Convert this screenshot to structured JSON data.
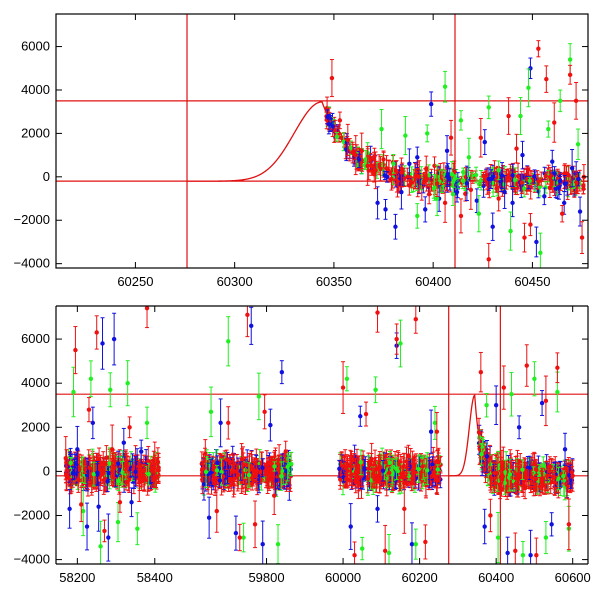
{
  "figure": {
    "colors": {
      "blue": "#1010e0",
      "green": "#20f020",
      "red": "#f01010",
      "reference": "#e01010",
      "axis": "#000000"
    }
  },
  "chart_data": [
    {
      "type": "scatter",
      "title": "",
      "xlabel": "",
      "ylabel": "",
      "xlim": [
        60210,
        60478
      ],
      "ylim": [
        -4200,
        7500
      ],
      "x_ticks": [
        60250,
        60300,
        60350,
        60400,
        60450
      ],
      "x_tick_labels": [
        "60250",
        "60300",
        "60350",
        "60400",
        "60450"
      ],
      "y_ticks": [
        -4000,
        -2000,
        0,
        2000,
        4000,
        6000
      ],
      "y_tick_labels": [
        "−4000",
        "−2000",
        "0",
        "2000",
        "4000",
        "6000"
      ],
      "grid": false,
      "legend": "none",
      "reference_lines": {
        "vertical_x": [
          60276,
          60411
        ],
        "horizontal_y": [
          3500,
          -200
        ]
      },
      "model_curve": {
        "start_x": 60276,
        "peak_x": 60344,
        "peak_y": 3450,
        "baseline_y": -200,
        "rise_width": 14,
        "decay_time": 15,
        "end_x": 60478
      },
      "series": [
        {
          "color": "blue",
          "points": [
            [
              60372,
              -1200
            ],
            [
              60376,
              -1500
            ],
            [
              60381,
              -2300
            ],
            [
              60384,
              -700
            ],
            [
              60388,
              600
            ],
            [
              60392,
              900
            ],
            [
              60396,
              -1500
            ],
            [
              60399,
              3350
            ],
            [
              60403,
              -1000
            ],
            [
              60407,
              1200
            ],
            [
              60412,
              -700
            ],
            [
              60417,
              -300
            ],
            [
              60422,
              -1100
            ],
            [
              60426,
              1600
            ],
            [
              60430,
              -2300
            ],
            [
              60436,
              -700
            ],
            [
              60440,
              -1200
            ],
            [
              60445,
              1000
            ],
            [
              60449,
              5000
            ],
            [
              60452,
              -3000
            ],
            [
              60456,
              -900
            ],
            [
              60460,
              700
            ],
            [
              60466,
              -1200
            ],
            [
              60470,
              400
            ],
            [
              60474,
              -1600
            ]
          ]
        },
        {
          "color": "green",
          "points": [
            [
              60367,
              1100
            ],
            [
              60374,
              2200
            ],
            [
              60380,
              600
            ],
            [
              60386,
              1900
            ],
            [
              60392,
              -1800
            ],
            [
              60397,
              2000
            ],
            [
              60402,
              -1000
            ],
            [
              60406,
              4150
            ],
            [
              60410,
              -800
            ],
            [
              60414,
              2600
            ],
            [
              60418,
              900
            ],
            [
              60423,
              -1700
            ],
            [
              60428,
              3200
            ],
            [
              60433,
              300
            ],
            [
              60439,
              -2500
            ],
            [
              60444,
              2800
            ],
            [
              60448,
              4100
            ],
            [
              60454,
              -3500
            ],
            [
              60458,
              2200
            ],
            [
              60464,
              3500
            ],
            [
              60469,
              5400
            ],
            [
              60473,
              1500
            ]
          ]
        },
        {
          "color": "red",
          "points": [
            [
              60349,
              4550
            ],
            [
              60353,
              2600
            ],
            [
              60357,
              1700
            ],
            [
              60361,
              1000
            ],
            [
              60364,
              1200
            ],
            [
              60367,
              500
            ],
            [
              60371,
              300
            ],
            [
              60375,
              800
            ],
            [
              60379,
              -100
            ],
            [
              60384,
              200
            ],
            [
              60388,
              -400
            ],
            [
              60393,
              0
            ],
            [
              60398,
              -800
            ],
            [
              60402,
              -300
            ],
            [
              60406,
              -1200
            ],
            [
              60409,
              1800
            ],
            [
              60414,
              -1800
            ],
            [
              60419,
              -600
            ],
            [
              60424,
              1800
            ],
            [
              60428,
              -3800
            ],
            [
              60433,
              -1000
            ],
            [
              60438,
              2800
            ],
            [
              60442,
              1300
            ],
            [
              60446,
              -2800
            ],
            [
              60449,
              -2200
            ],
            [
              60453,
              5900
            ],
            [
              60457,
              4500
            ],
            [
              60461,
              2500
            ],
            [
              60465,
              -1700
            ],
            [
              60469,
              4700
            ],
            [
              60472,
              3500
            ],
            [
              60475,
              -2800
            ]
          ]
        }
      ]
    },
    {
      "type": "scatter",
      "title": "",
      "xlabel": "",
      "ylabel": "",
      "ylim": [
        -4200,
        7500
      ],
      "x_ticks": [
        58200,
        58400,
        59800,
        60000,
        60200,
        60400,
        60600
      ],
      "x_tick_labels": [
        "58200",
        "58400",
        "59800",
        "60000",
        "60200",
        "60400",
        "60600"
      ],
      "y_ticks": [
        -4000,
        -2000,
        0,
        2000,
        4000,
        6000
      ],
      "y_tick_labels": [
        "−4000",
        "−2000",
        "0",
        "2000",
        "4000",
        "6000"
      ],
      "grid": false,
      "legend": "none",
      "axis_break": true,
      "segments": [
        {
          "xlim": [
            58150,
            58460
          ]
        },
        {
          "xlim": [
            59600,
            60640
          ]
        }
      ],
      "reference_lines": {
        "vertical_x": [
          60276,
          60411
        ],
        "horizontal_y": [
          3500,
          -200
        ]
      },
      "model_curve": {
        "start_x": 60276,
        "peak_x": 60344,
        "peak_y": 3450,
        "baseline_y": -200,
        "rise_width": 14,
        "decay_time": 15,
        "end_x": 60360
      },
      "data_windows": [
        {
          "x_from": 58170,
          "x_to": 58410
        },
        {
          "x_from": 59630,
          "x_to": 59865
        },
        {
          "x_from": 59990,
          "x_to": 60255
        },
        {
          "x_from": 60355,
          "x_to": 60600
        }
      ],
      "series": [
        {
          "color": "blue",
          "points": [
            [
              58180,
              -1700
            ],
            [
              58200,
              1000
            ],
            [
              58225,
              -2500
            ],
            [
              58240,
              2200
            ],
            [
              58255,
              -1600
            ],
            [
              58265,
              5800
            ],
            [
              58280,
              -3000
            ],
            [
              58295,
              6000
            ],
            [
              58320,
              1300
            ],
            [
              58340,
              -1400
            ],
            [
              58365,
              900
            ],
            [
              59650,
              -2100
            ],
            [
              59680,
              2200
            ],
            [
              59720,
              -2800
            ],
            [
              59760,
              6600
            ],
            [
              59790,
              -3300
            ],
            [
              59810,
              2100
            ],
            [
              59840,
              4500
            ],
            [
              60020,
              -2500
            ],
            [
              60045,
              2500
            ],
            [
              60090,
              -1700
            ],
            [
              60140,
              5700
            ],
            [
              60180,
              -3300
            ],
            [
              60230,
              1800
            ],
            [
              60370,
              -2500
            ],
            [
              60400,
              3000
            ],
            [
              60430,
              -3700
            ],
            [
              60460,
              2000
            ],
            [
              60490,
              -3800
            ],
            [
              60520,
              3100
            ],
            [
              60545,
              -2400
            ],
            [
              60580,
              1000
            ]
          ]
        },
        {
          "color": "green",
          "points": [
            [
              58190,
              3600
            ],
            [
              58215,
              -1800
            ],
            [
              58235,
              4200
            ],
            [
              58260,
              -3400
            ],
            [
              58285,
              3700
            ],
            [
              58305,
              -2300
            ],
            [
              58330,
              4000
            ],
            [
              58355,
              -2600
            ],
            [
              58380,
              2200
            ],
            [
              59655,
              2700
            ],
            [
              59700,
              5900
            ],
            [
              59740,
              -3000
            ],
            [
              59780,
              3400
            ],
            [
              59830,
              -3300
            ],
            [
              60010,
              4200
            ],
            [
              60050,
              -3500
            ],
            [
              60085,
              3700
            ],
            [
              60120,
              -3700
            ],
            [
              60150,
              5800
            ],
            [
              60190,
              -3300
            ],
            [
              60240,
              2200
            ],
            [
              60375,
              3000
            ],
            [
              60405,
              -3000
            ],
            [
              60440,
              3500
            ],
            [
              60470,
              -3800
            ],
            [
              60500,
              4200
            ],
            [
              60530,
              -3000
            ],
            [
              60560,
              3600
            ],
            [
              60590,
              -2600
            ]
          ]
        },
        {
          "color": "red",
          "points": [
            [
              58170,
              600
            ],
            [
              58195,
              5500
            ],
            [
              58210,
              -1500
            ],
            [
              58230,
              2800
            ],
            [
              58250,
              6300
            ],
            [
              58270,
              -2700
            ],
            [
              58290,
              1000
            ],
            [
              58310,
              -1400
            ],
            [
              58335,
              2000
            ],
            [
              58360,
              -500
            ],
            [
              58380,
              7400
            ],
            [
              58400,
              300
            ],
            [
              59640,
              800
            ],
            [
              59670,
              -1800
            ],
            [
              59700,
              2200
            ],
            [
              59730,
              -3000
            ],
            [
              59750,
              7100
            ],
            [
              59770,
              -2400
            ],
            [
              59795,
              2700
            ],
            [
              59820,
              -1100
            ],
            [
              59850,
              900
            ],
            [
              60000,
              3800
            ],
            [
              60030,
              -3800
            ],
            [
              60060,
              2600
            ],
            [
              60090,
              7200
            ],
            [
              60110,
              -3600
            ],
            [
              60140,
              6000
            ],
            [
              60160,
              -1700
            ],
            [
              60190,
              6900
            ],
            [
              60215,
              -3200
            ],
            [
              60245,
              1800
            ],
            [
              60360,
              4500
            ],
            [
              60385,
              -2000
            ],
            [
              60420,
              3800
            ],
            [
              60450,
              -3600
            ],
            [
              60480,
              4800
            ],
            [
              60505,
              -3800
            ],
            [
              60530,
              3200
            ],
            [
              60560,
              4700
            ],
            [
              60590,
              -2400
            ]
          ]
        }
      ]
    }
  ]
}
